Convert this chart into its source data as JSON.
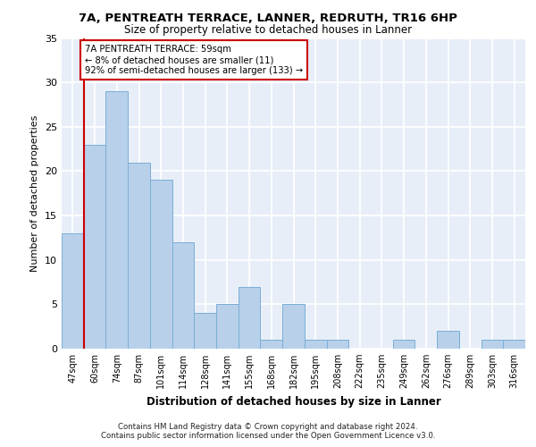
{
  "title1": "7A, PENTREATH TERRACE, LANNER, REDRUTH, TR16 6HP",
  "title2": "Size of property relative to detached houses in Lanner",
  "xlabel": "Distribution of detached houses by size in Lanner",
  "ylabel": "Number of detached properties",
  "categories": [
    "47sqm",
    "60sqm",
    "74sqm",
    "87sqm",
    "101sqm",
    "114sqm",
    "128sqm",
    "141sqm",
    "155sqm",
    "168sqm",
    "182sqm",
    "195sqm",
    "208sqm",
    "222sqm",
    "235sqm",
    "249sqm",
    "262sqm",
    "276sqm",
    "289sqm",
    "303sqm",
    "316sqm"
  ],
  "values": [
    13,
    23,
    29,
    21,
    19,
    12,
    4,
    5,
    7,
    1,
    5,
    1,
    1,
    0,
    0,
    1,
    0,
    2,
    0,
    1,
    1
  ],
  "bar_color": "#b8d0ea",
  "bar_edge_color": "#7aaed6",
  "background_color": "#e8eef8",
  "grid_color": "#ffffff",
  "property_line_x": 0.5,
  "annotation_text": "7A PENTREATH TERRACE: 59sqm\n← 8% of detached houses are smaller (11)\n92% of semi-detached houses are larger (133) →",
  "annotation_box_color": "#ffffff",
  "annotation_box_edge": "#cc0000",
  "red_line_color": "#cc0000",
  "ylim": [
    0,
    35
  ],
  "yticks": [
    0,
    5,
    10,
    15,
    20,
    25,
    30,
    35
  ],
  "footer1": "Contains HM Land Registry data © Crown copyright and database right 2024.",
  "footer2": "Contains public sector information licensed under the Open Government Licence v3.0."
}
